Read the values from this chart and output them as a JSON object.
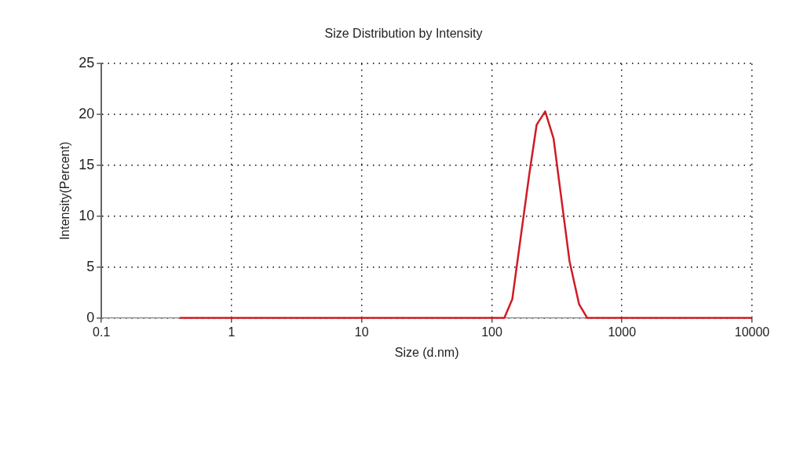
{
  "chart_data": {
    "type": "line",
    "title": "Size Distribution by Intensity",
    "xlabel": "Size (d.nm)",
    "ylabel": "Intensity(Percent)",
    "log": "x",
    "xlim": [
      0.1,
      10000
    ],
    "xticks": [
      0.1,
      1,
      10,
      100,
      1000,
      10000
    ],
    "ylim": [
      0,
      25
    ],
    "yticks": [
      0,
      5,
      10,
      15,
      20,
      25
    ],
    "grid": true,
    "legend": false,
    "marker": "none",
    "line_style": "solid",
    "series": [
      {
        "color": "#d01c24",
        "x": [
          0.4,
          1,
          10,
          100,
          124.8,
          143.6,
          194,
          221,
          257,
          298,
          395,
          468,
          541,
          1000,
          10000
        ],
        "values": [
          0,
          0,
          0,
          0,
          0,
          1.86,
          14.15,
          19.0,
          20.3,
          17.65,
          5.6,
          1.35,
          0,
          0,
          0
        ]
      }
    ]
  }
}
